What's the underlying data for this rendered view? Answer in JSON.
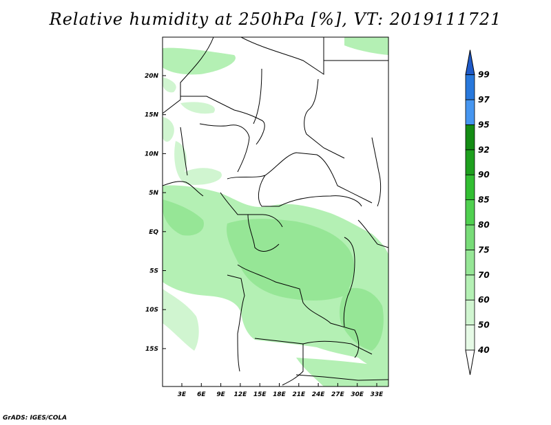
{
  "title": "Relative humidity at 250hPa [%], VT: 2019111721",
  "credit": "GrADS: IGES/COLA",
  "lat_labels": [
    "20N",
    "15N",
    "10N",
    "5N",
    "EQ",
    "5S",
    "10S",
    "15S"
  ],
  "lon_labels": [
    "3E",
    "6E",
    "9E",
    "12E",
    "15E",
    "18E",
    "21E",
    "24E",
    "27E",
    "30E",
    "33E"
  ],
  "colorbar": {
    "levels": [
      "40",
      "50",
      "60",
      "70",
      "75",
      "80",
      "85",
      "90",
      "92",
      "95",
      "97",
      "99"
    ],
    "colors": [
      "#ffffff",
      "#e6fae6",
      "#d0f5d0",
      "#b4f0b4",
      "#96e696",
      "#78dc78",
      "#50d050",
      "#32be32",
      "#1ea01e",
      "#148c14",
      "#4696f0",
      "#2878dc",
      "#1e5ac8"
    ]
  },
  "colors": {
    "frame": "#000000",
    "border": "#000000"
  }
}
